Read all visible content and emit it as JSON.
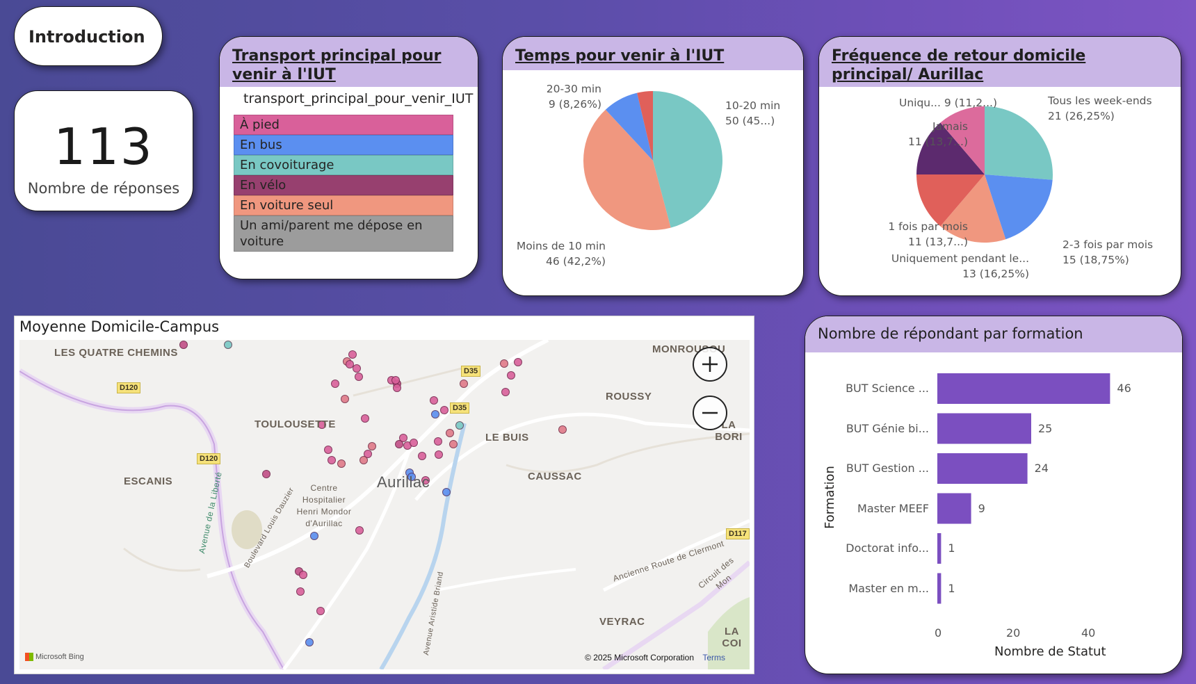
{
  "intro_button": {
    "label": "Introduction"
  },
  "kpi": {
    "value": "113",
    "label": "Nombre de réponses"
  },
  "transport_slicer": {
    "title": "Transport principal pour venir à l'IUT",
    "field_name": "transport_principal_pour_venir_IUT",
    "items": [
      {
        "label": "À pied",
        "color": "#d9609a"
      },
      {
        "label": "En bus",
        "color": "#5b8ff0"
      },
      {
        "label": "En covoiturage",
        "color": "#79c8c4"
      },
      {
        "label": "En vélo",
        "color": "#97406f"
      },
      {
        "label": "En voiture seul",
        "color": "#f0977f"
      },
      {
        "label": "Un ami/parent me dépose en voiture",
        "color": "#9c9c9c"
      }
    ]
  },
  "map": {
    "title": "Moyenne Domicile-Campus",
    "places": [
      "LES QUATRE CHEMINS",
      "TOULOUSETTE",
      "ESCANIS",
      "LE BUIS",
      "ROUSSY",
      "CAUSSAC",
      "MONROUSOU",
      "LA BORI",
      "VEYRAC",
      "LA COI",
      "Aurillac",
      "Centre Hospitalier Henri Mondor d'Aurillac"
    ],
    "roads": [
      "D120",
      "D120",
      "D35",
      "D35",
      "D117"
    ],
    "streets": [
      "Avenue de la Liberté",
      "Boulevard Louis Dauzier",
      "Ancienne Route de Clermont",
      "Circuit des Mon",
      "Avenue Aristide Briand"
    ],
    "zoom_in": "+",
    "zoom_out": "−",
    "attribution": "Microsoft Bing",
    "copyright": "© 2025 Microsoft Corporation",
    "terms": "Terms"
  },
  "chart_data": [
    {
      "type": "pie",
      "title": "Temps pour venir à l'IUT",
      "slices": [
        {
          "name": "10-20 min",
          "value": 50,
          "percent": "45…",
          "color": "#79c8c4"
        },
        {
          "name": "Moins de 10 min",
          "value": 46,
          "percent": "42,2%",
          "color": "#f0977f"
        },
        {
          "name": "20-30 min",
          "value": 9,
          "percent": "8,26%",
          "color": "#5b8ff0"
        },
        {
          "name": "",
          "value": 4,
          "percent": "",
          "color": "#e0605a"
        }
      ],
      "labels": [
        {
          "line1": "10-20 min",
          "line2": "50 (45...)"
        },
        {
          "line1": "Moins de 10 min",
          "line2": "46 (42,2%)"
        },
        {
          "line1": "20-30 min",
          "line2": "9 (8,26%)"
        }
      ]
    },
    {
      "type": "pie",
      "title": "Fréquence de retour domicile principal/ Aurillac",
      "slices": [
        {
          "name": "Tous les week-ends",
          "value": 21,
          "color": "#79c8c4"
        },
        {
          "name": "2-3 fois par mois",
          "value": 15,
          "color": "#5b8ff0"
        },
        {
          "name": "Uniquement pendant le...",
          "value": 13,
          "color": "#f0977f"
        },
        {
          "name": "1 fois par mois",
          "value": 11,
          "color": "#e0605a"
        },
        {
          "name": "Jamais",
          "value": 11,
          "color": "#5c2a6e"
        },
        {
          "name": "Uniqu...",
          "value": 9,
          "color": "#dc6b9c"
        }
      ],
      "labels": [
        {
          "line1": "Tous les week-ends",
          "line2": "21 (26,25%)"
        },
        {
          "line1": "2-3 fois par mois",
          "line2": "15 (18,75%)"
        },
        {
          "line1": "Uniquement pendant le...",
          "line2": "13 (16,25%)"
        },
        {
          "line1": "1 fois par mois",
          "line2": "11 (13,7...)"
        },
        {
          "line1": "Jamais",
          "line2": "11 (13,7...)"
        },
        {
          "line1": "Uniqu... 9 (11,2...)",
          "line2": ""
        }
      ]
    },
    {
      "type": "bar",
      "orientation": "horizontal",
      "title": "Nombre de répondant par formation",
      "xlabel": "Nombre de Statut",
      "ylabel": "Formation",
      "categories": [
        "BUT Science ...",
        "BUT Génie bi...",
        "BUT Gestion ...",
        "Master MEEF",
        "Doctorat info...",
        "Master en m..."
      ],
      "values": [
        46,
        25,
        24,
        9,
        1,
        1
      ],
      "xlim": [
        0,
        50
      ],
      "xticks": [
        "0",
        "20",
        "40"
      ],
      "color": "#7b4fc0"
    }
  ]
}
